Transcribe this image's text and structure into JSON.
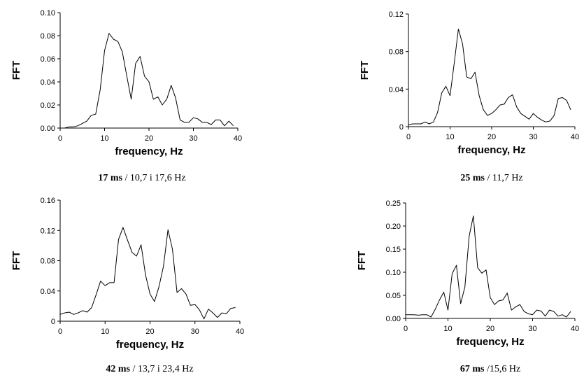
{
  "chart_data": [
    {
      "type": "line",
      "xlabel": "frequency, Hz",
      "ylabel": "FFT",
      "xlim": [
        0,
        40
      ],
      "ylim": [
        0,
        0.1
      ],
      "xticks": [
        "0",
        "10",
        "20",
        "30",
        "40"
      ],
      "yticks": [
        "0.00",
        "0.02",
        "0.04",
        "0.06",
        "0.08",
        "0.10"
      ],
      "caption_bold": "17 ms",
      "caption_rest": " / 10,7 i 17,6 Hz",
      "x": [
        0,
        1,
        2,
        3,
        4,
        5,
        6,
        7,
        8,
        9,
        10,
        11,
        12,
        13,
        14,
        15,
        16,
        17,
        18,
        19,
        20,
        21,
        22,
        23,
        24,
        25,
        26,
        27,
        28,
        29,
        30,
        31,
        32,
        33,
        34,
        35,
        36,
        37,
        38,
        39
      ],
      "y": [
        0.0,
        0.0,
        0.001,
        0.001,
        0.002,
        0.004,
        0.006,
        0.011,
        0.012,
        0.033,
        0.067,
        0.082,
        0.077,
        0.075,
        0.066,
        0.045,
        0.025,
        0.056,
        0.062,
        0.045,
        0.04,
        0.025,
        0.027,
        0.02,
        0.025,
        0.037,
        0.026,
        0.007,
        0.005,
        0.005,
        0.009,
        0.008,
        0.005,
        0.005,
        0.003,
        0.007,
        0.007,
        0.002,
        0.006,
        0.002
      ]
    },
    {
      "type": "line",
      "xlabel": "frequency, Hz",
      "ylabel": "FFT",
      "xlim": [
        0,
        40
      ],
      "ylim": [
        0,
        0.12
      ],
      "xticks": [
        "0",
        "10",
        "20",
        "30",
        "40"
      ],
      "yticks": [
        "0",
        "0.04",
        "0.08",
        "0.12"
      ],
      "caption_bold": "25 ms",
      "caption_rest": " / 11,7 Hz",
      "x": [
        0,
        1,
        2,
        3,
        4,
        5,
        6,
        7,
        8,
        9,
        10,
        11,
        12,
        13,
        14,
        15,
        16,
        17,
        18,
        19,
        20,
        21,
        22,
        23,
        24,
        25,
        26,
        27,
        28,
        29,
        30,
        31,
        32,
        33,
        34,
        35,
        36,
        37,
        38,
        39
      ],
      "y": [
        0.002,
        0.003,
        0.003,
        0.003,
        0.005,
        0.003,
        0.005,
        0.015,
        0.036,
        0.043,
        0.033,
        0.068,
        0.104,
        0.088,
        0.053,
        0.051,
        0.058,
        0.033,
        0.018,
        0.012,
        0.014,
        0.018,
        0.023,
        0.024,
        0.031,
        0.034,
        0.021,
        0.014,
        0.011,
        0.008,
        0.014,
        0.01,
        0.007,
        0.005,
        0.006,
        0.012,
        0.03,
        0.031,
        0.028,
        0.018
      ]
    },
    {
      "type": "line",
      "xlabel": "frequency, Hz",
      "ylabel": "FFT",
      "xlim": [
        0,
        40
      ],
      "ylim": [
        0,
        0.16
      ],
      "xticks": [
        "0",
        "10",
        "20",
        "30",
        "40"
      ],
      "yticks": [
        "0",
        "0.04",
        "0.08",
        "0.12",
        "0.16"
      ],
      "caption_bold": "42 ms",
      "caption_rest": " / 13,7 i 23,4 Hz",
      "x": [
        0,
        1,
        2,
        3,
        4,
        5,
        6,
        7,
        8,
        9,
        10,
        11,
        12,
        13,
        14,
        15,
        16,
        17,
        18,
        19,
        20,
        21,
        22,
        23,
        24,
        25,
        26,
        27,
        28,
        29,
        30,
        31,
        32,
        33,
        34,
        35,
        36,
        37,
        38,
        39
      ],
      "y": [
        0.009,
        0.011,
        0.012,
        0.009,
        0.011,
        0.014,
        0.012,
        0.018,
        0.035,
        0.053,
        0.047,
        0.051,
        0.051,
        0.108,
        0.124,
        0.107,
        0.091,
        0.086,
        0.101,
        0.061,
        0.036,
        0.026,
        0.046,
        0.073,
        0.121,
        0.095,
        0.038,
        0.043,
        0.036,
        0.021,
        0.022,
        0.015,
        0.003,
        0.016,
        0.011,
        0.005,
        0.011,
        0.01,
        0.017,
        0.018
      ]
    },
    {
      "type": "line",
      "xlabel": "frequency, Hz",
      "ylabel": "FFT",
      "xlim": [
        0,
        40
      ],
      "ylim": [
        0,
        0.25
      ],
      "xticks": [
        "0",
        "10",
        "20",
        "30",
        "40"
      ],
      "yticks": [
        "0.00",
        "0.05",
        "0.10",
        "0.15",
        "0.20",
        "0.25"
      ],
      "caption_bold": "67 ms",
      "caption_rest": " /15,6 Hz",
      "x": [
        0,
        1,
        2,
        3,
        4,
        5,
        6,
        7,
        8,
        9,
        10,
        11,
        12,
        13,
        14,
        15,
        16,
        17,
        18,
        19,
        20,
        21,
        22,
        23,
        24,
        25,
        26,
        27,
        28,
        29,
        30,
        31,
        32,
        33,
        34,
        35,
        36,
        37,
        38,
        39
      ],
      "y": [
        0.008,
        0.008,
        0.008,
        0.007,
        0.008,
        0.008,
        0.003,
        0.02,
        0.04,
        0.057,
        0.018,
        0.097,
        0.115,
        0.032,
        0.068,
        0.178,
        0.222,
        0.11,
        0.098,
        0.105,
        0.045,
        0.03,
        0.038,
        0.04,
        0.055,
        0.018,
        0.025,
        0.03,
        0.015,
        0.01,
        0.008,
        0.018,
        0.016,
        0.005,
        0.018,
        0.015,
        0.005,
        0.008,
        0.003,
        0.015
      ]
    }
  ]
}
